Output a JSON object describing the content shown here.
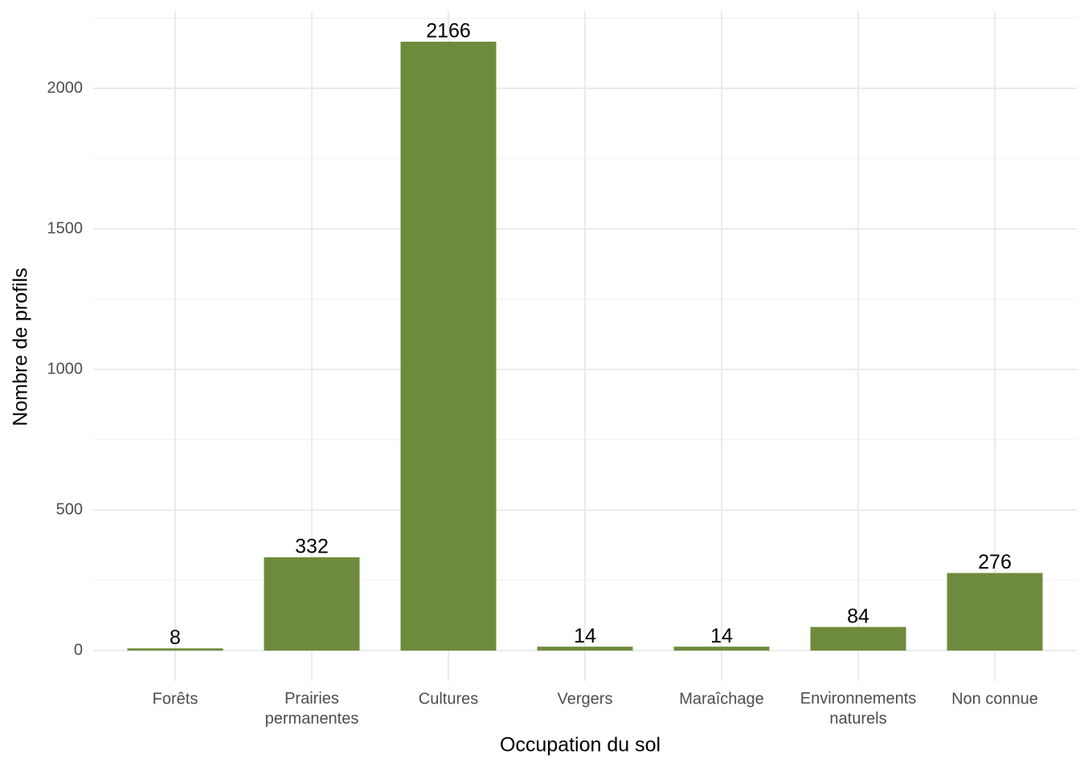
{
  "chart_data": {
    "type": "bar",
    "x_label": "Occupation du sol",
    "y_label": "Nombre de profils",
    "categories": [
      "Forêts",
      "Prairies\npermanentes",
      "Cultures",
      "Vergers",
      "Maraîchage",
      "Environnements\nnaturels",
      "Non connue"
    ],
    "values": [
      8,
      332,
      2166,
      14,
      14,
      84,
      276
    ],
    "color": "#6e8b3d",
    "ylim": [
      -108.3,
      2274.3
    ],
    "yticks": [
      0,
      500,
      1000,
      1500,
      2000
    ],
    "grid": true
  }
}
